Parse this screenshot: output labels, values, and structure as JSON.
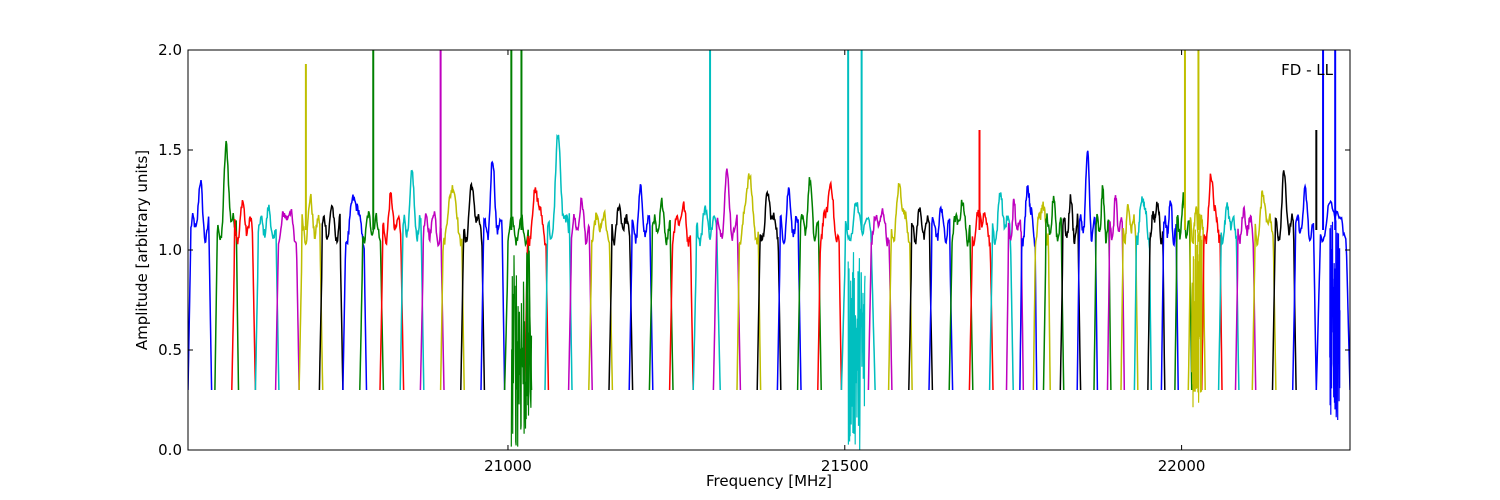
{
  "chart_data": {
    "type": "line",
    "title": "",
    "annotation": "FD - LL",
    "xlabel": "Frequency [MHz]",
    "ylabel": "Amplitude [arbitrary units]",
    "xlim": [
      20525,
      22250
    ],
    "ylim": [
      0.0,
      2.0
    ],
    "x_ticks": [
      21000,
      21500,
      22000
    ],
    "y_ticks": [
      0.0,
      0.5,
      1.0,
      1.5,
      2.0
    ],
    "x_tick_labels": [
      "21000",
      "21500",
      "22000"
    ],
    "y_tick_labels": [
      "0.0",
      "0.5",
      "1.0",
      "1.5",
      "2.0"
    ],
    "grid": false,
    "color_cycle": [
      "#0000ff",
      "#008000",
      "#ff0000",
      "#00bfbf",
      "#bf00bf",
      "#bfbf00",
      "#000000"
    ],
    "background_trace_color": "#bfbfbf",
    "sub_bands": [
      {
        "x_start": 20525,
        "x_end": 20560,
        "peak": 1.35,
        "color": "#0000ff"
      },
      {
        "x_start": 20565,
        "x_end": 20600,
        "peak": 1.55,
        "color": "#008000"
      },
      {
        "x_start": 20590,
        "x_end": 20625,
        "peak": 1.25,
        "color": "#ff0000"
      },
      {
        "x_start": 20625,
        "x_end": 20660,
        "peak": 1.22,
        "color": "#00bfbf"
      },
      {
        "x_start": 20655,
        "x_end": 20690,
        "peak": 1.27,
        "color": "#bf00bf"
      },
      {
        "x_start": 20690,
        "x_end": 20725,
        "peak": 1.26,
        "color": "#bfbf00"
      },
      {
        "x_start": 20720,
        "x_end": 20755,
        "peak": 1.22,
        "color": "#000000"
      },
      {
        "x_start": 20755,
        "x_end": 20790,
        "peak": 1.35,
        "color": "#0000ff"
      },
      {
        "x_start": 20780,
        "x_end": 20815,
        "peak": 1.2,
        "color": "#008000"
      },
      {
        "x_start": 20810,
        "x_end": 20845,
        "peak": 1.28,
        "color": "#ff0000"
      },
      {
        "x_start": 20840,
        "x_end": 20875,
        "peak": 1.38,
        "color": "#00bfbf"
      },
      {
        "x_start": 20870,
        "x_end": 20905,
        "peak": 1.2,
        "color": "#bf00bf"
      },
      {
        "x_start": 20900,
        "x_end": 20935,
        "peak": 1.42,
        "color": "#bfbf00"
      },
      {
        "x_start": 20930,
        "x_end": 20965,
        "peak": 1.37,
        "color": "#000000"
      },
      {
        "x_start": 20960,
        "x_end": 20995,
        "peak": 1.45,
        "color": "#0000ff"
      },
      {
        "x_start": 20995,
        "x_end": 21035,
        "peak": 1.15,
        "color": "#008000"
      },
      {
        "x_start": 21025,
        "x_end": 21060,
        "peak": 1.38,
        "color": "#ff0000"
      },
      {
        "x_start": 21055,
        "x_end": 21095,
        "peak": 1.6,
        "color": "#00bfbf"
      },
      {
        "x_start": 21090,
        "x_end": 21125,
        "peak": 1.26,
        "color": "#bf00bf"
      },
      {
        "x_start": 21120,
        "x_end": 21155,
        "peak": 1.21,
        "color": "#bfbf00"
      },
      {
        "x_start": 21150,
        "x_end": 21185,
        "peak": 1.25,
        "color": "#000000"
      },
      {
        "x_start": 21180,
        "x_end": 21215,
        "peak": 1.3,
        "color": "#0000ff"
      },
      {
        "x_start": 21210,
        "x_end": 21245,
        "peak": 1.24,
        "color": "#008000"
      },
      {
        "x_start": 21240,
        "x_end": 21275,
        "peak": 1.27,
        "color": "#ff0000"
      },
      {
        "x_start": 21275,
        "x_end": 21315,
        "peak": 1.22,
        "color": "#00bfbf"
      },
      {
        "x_start": 21305,
        "x_end": 21345,
        "peak": 1.38,
        "color": "#bf00bf"
      },
      {
        "x_start": 21340,
        "x_end": 21375,
        "peak": 1.47,
        "color": "#bfbf00"
      },
      {
        "x_start": 21370,
        "x_end": 21405,
        "peak": 1.33,
        "color": "#000000"
      },
      {
        "x_start": 21400,
        "x_end": 21435,
        "peak": 1.3,
        "color": "#0000ff"
      },
      {
        "x_start": 21430,
        "x_end": 21465,
        "peak": 1.35,
        "color": "#008000"
      },
      {
        "x_start": 21460,
        "x_end": 21495,
        "peak": 1.4,
        "color": "#ff0000"
      },
      {
        "x_start": 21495,
        "x_end": 21545,
        "peak": 1.25,
        "color": "#00bfbf"
      },
      {
        "x_start": 21535,
        "x_end": 21570,
        "peak": 1.24,
        "color": "#bf00bf"
      },
      {
        "x_start": 21565,
        "x_end": 21600,
        "peak": 1.39,
        "color": "#bfbf00"
      },
      {
        "x_start": 21595,
        "x_end": 21630,
        "peak": 1.21,
        "color": "#000000"
      },
      {
        "x_start": 21625,
        "x_end": 21660,
        "peak": 1.21,
        "color": "#0000ff"
      },
      {
        "x_start": 21655,
        "x_end": 21690,
        "peak": 1.28,
        "color": "#008000"
      },
      {
        "x_start": 21685,
        "x_end": 21720,
        "peak": 1.25,
        "color": "#ff0000"
      },
      {
        "x_start": 21715,
        "x_end": 21750,
        "peak": 1.31,
        "color": "#00bfbf"
      },
      {
        "x_start": 21740,
        "x_end": 21765,
        "peak": 1.25,
        "color": "#bf00bf"
      },
      {
        "x_start": 21760,
        "x_end": 21785,
        "peak": 1.4,
        "color": "#0000ff"
      },
      {
        "x_start": 21780,
        "x_end": 21805,
        "peak": 1.3,
        "color": "#bfbf00"
      },
      {
        "x_start": 21795,
        "x_end": 21825,
        "peak": 1.26,
        "color": "#008000"
      },
      {
        "x_start": 21820,
        "x_end": 21850,
        "peak": 1.25,
        "color": "#000000"
      },
      {
        "x_start": 21845,
        "x_end": 21875,
        "peak": 1.48,
        "color": "#0000ff"
      },
      {
        "x_start": 21870,
        "x_end": 21895,
        "peak": 1.3,
        "color": "#008000"
      },
      {
        "x_start": 21890,
        "x_end": 21915,
        "peak": 1.27,
        "color": "#bf00bf"
      },
      {
        "x_start": 21910,
        "x_end": 21935,
        "peak": 1.25,
        "color": "#bfbf00"
      },
      {
        "x_start": 21930,
        "x_end": 21955,
        "peak": 1.35,
        "color": "#00bfbf"
      },
      {
        "x_start": 21950,
        "x_end": 21975,
        "peak": 1.3,
        "color": "#000000"
      },
      {
        "x_start": 21970,
        "x_end": 21995,
        "peak": 1.25,
        "color": "#0000ff"
      },
      {
        "x_start": 21990,
        "x_end": 22015,
        "peak": 1.26,
        "color": "#008000"
      },
      {
        "x_start": 22010,
        "x_end": 22035,
        "peak": 1.2,
        "color": "#bfbf00"
      },
      {
        "x_start": 22030,
        "x_end": 22060,
        "peak": 1.45,
        "color": "#ff0000"
      },
      {
        "x_start": 22055,
        "x_end": 22085,
        "peak": 1.25,
        "color": "#00bfbf"
      },
      {
        "x_start": 22080,
        "x_end": 22110,
        "peak": 1.22,
        "color": "#bf00bf"
      },
      {
        "x_start": 22105,
        "x_end": 22140,
        "peak": 1.33,
        "color": "#bfbf00"
      },
      {
        "x_start": 22135,
        "x_end": 22170,
        "peak": 1.4,
        "color": "#000000"
      },
      {
        "x_start": 22165,
        "x_end": 22200,
        "peak": 1.3,
        "color": "#0000ff"
      },
      {
        "x_start": 22200,
        "x_end": 22250,
        "peak": 1.3,
        "color": "#0000ff"
      }
    ],
    "spikes": [
      {
        "x": 20700,
        "y": 1.93,
        "color": "#bfbf00"
      },
      {
        "x": 20800,
        "y": 2.0,
        "color": "#008000"
      },
      {
        "x": 20900,
        "y": 2.0,
        "color": "#bf00bf"
      },
      {
        "x": 21005,
        "y": 2.0,
        "color": "#008000"
      },
      {
        "x": 21020,
        "y": 2.0,
        "color": "#008000"
      },
      {
        "x": 21300,
        "y": 2.0,
        "color": "#00bfbf"
      },
      {
        "x": 21505,
        "y": 2.0,
        "color": "#00bfbf"
      },
      {
        "x": 21525,
        "y": 2.0,
        "color": "#00bfbf"
      },
      {
        "x": 21700,
        "y": 1.6,
        "color": "#ff0000"
      },
      {
        "x": 22005,
        "y": 2.0,
        "color": "#bfbf00"
      },
      {
        "x": 22025,
        "y": 2.0,
        "color": "#bfbf00"
      },
      {
        "x": 22200,
        "y": 1.6,
        "color": "#000000"
      },
      {
        "x": 22210,
        "y": 2.0,
        "color": "#0000ff"
      },
      {
        "x": 22228,
        "y": 2.0,
        "color": "#0000ff"
      }
    ],
    "dropouts": [
      {
        "x_start": 21005,
        "x_end": 21035,
        "min": 0.0,
        "color": "#008000"
      },
      {
        "x_start": 21505,
        "x_end": 21530,
        "min": 0.0,
        "color": "#00bfbf"
      },
      {
        "x_start": 22015,
        "x_end": 22030,
        "min": 0.2,
        "color": "#bfbf00"
      },
      {
        "x_start": 22220,
        "x_end": 22235,
        "min": 0.15,
        "color": "#0000ff"
      }
    ]
  }
}
